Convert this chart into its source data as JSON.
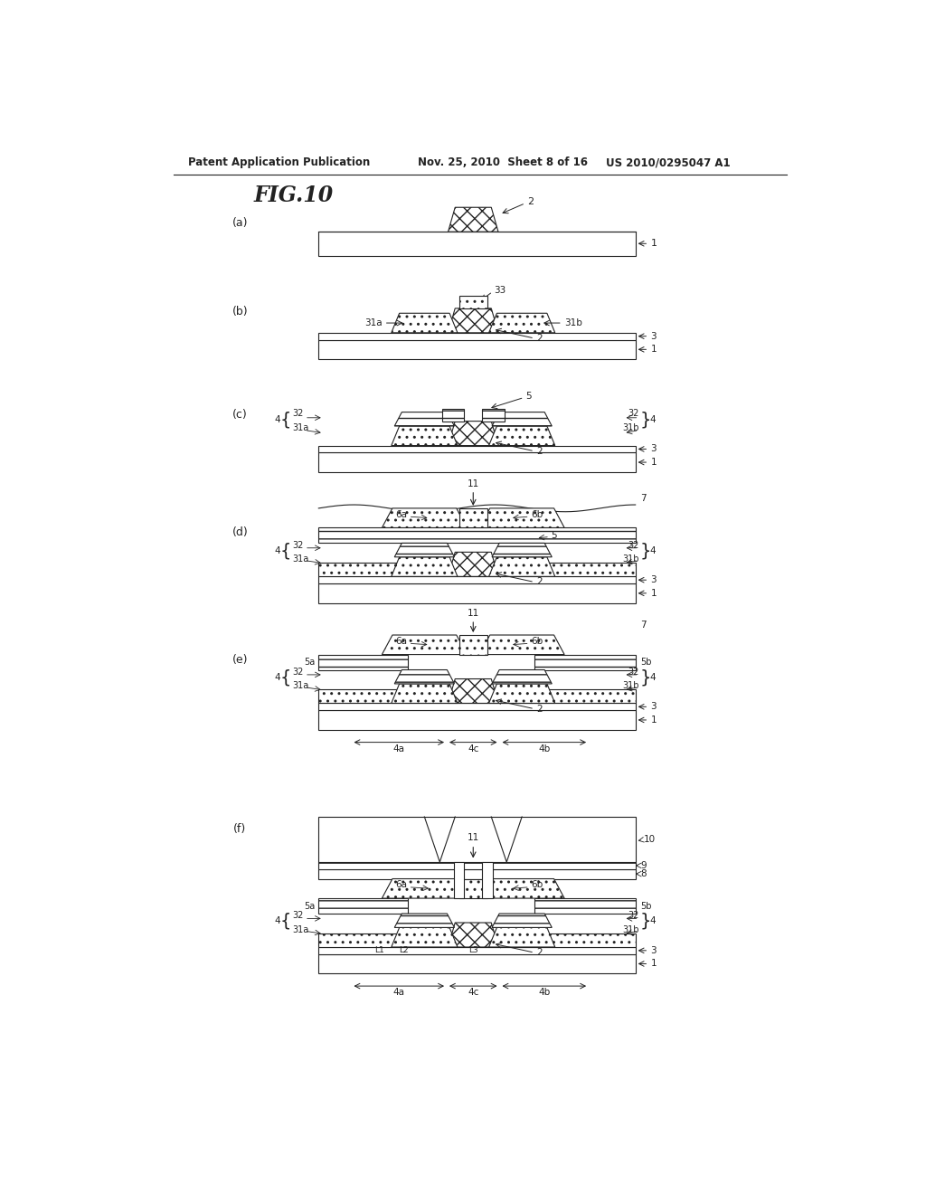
{
  "title": "FIG.10",
  "header_left": "Patent Application Publication",
  "header_mid": "Nov. 25, 2010  Sheet 8 of 16",
  "header_right": "US 2010/0295047 A1",
  "bg_color": "#ffffff",
  "panel_labels": [
    "(a)",
    "(b)",
    "(c)",
    "(d)",
    "(e)",
    "(f)"
  ],
  "line_color": "#222222"
}
